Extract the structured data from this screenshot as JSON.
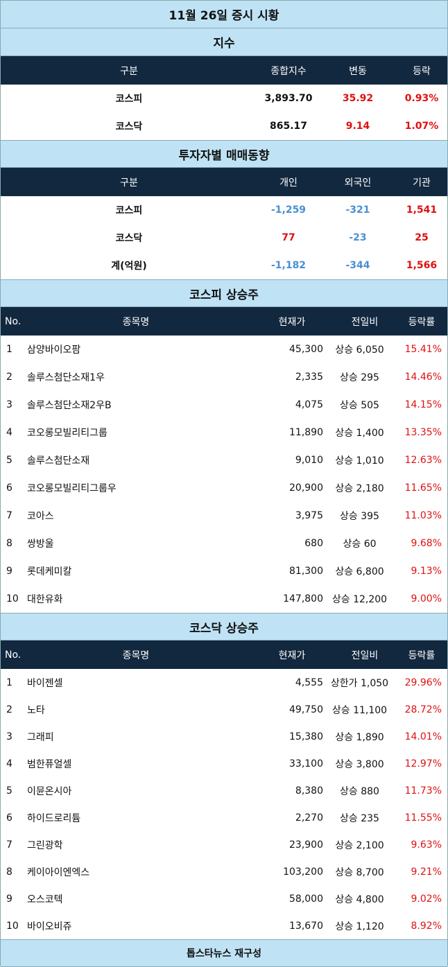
{
  "title": "11월 26일 증시 시황",
  "index_section": {
    "title": "지수",
    "headers": [
      "구분",
      "종합지수",
      "변동",
      "등락"
    ],
    "rows": [
      {
        "name": "코스피",
        "value": "3,893.70",
        "change": "35.92",
        "rate": "0.93%"
      },
      {
        "name": "코스닥",
        "value": "865.17",
        "change": "9.14",
        "rate": "1.07%"
      }
    ]
  },
  "investor_section": {
    "title": "투자자별 매매동향",
    "headers": [
      "구분",
      "개인",
      "외국인",
      "기관"
    ],
    "rows": [
      {
        "name": "코스피",
        "individual": "-1,259",
        "foreign": "-321",
        "institution": "1,541"
      },
      {
        "name": "코스닥",
        "individual": "77",
        "foreign": "-23",
        "institution": "25"
      },
      {
        "name": "계(억원)",
        "individual": "-1,182",
        "foreign": "-344",
        "institution": "1,566"
      }
    ]
  },
  "kospi_section": {
    "title": "코스피 상승주",
    "headers": [
      "No.",
      "종목명",
      "현재가",
      "전일비",
      "등락률"
    ],
    "rows": [
      {
        "no": "1",
        "name": "삼양바이오팜",
        "price": "45,300",
        "diff": "상승 6,050",
        "rate": "15.41%"
      },
      {
        "no": "2",
        "name": "솔루스첨단소재1우",
        "price": "2,335",
        "diff": "상승 295",
        "rate": "14.46%"
      },
      {
        "no": "3",
        "name": "솔루스첨단소재2우B",
        "price": "4,075",
        "diff": "상승 505",
        "rate": "14.15%"
      },
      {
        "no": "4",
        "name": "코오롱모빌리티그룹",
        "price": "11,890",
        "diff": "상승 1,400",
        "rate": "13.35%"
      },
      {
        "no": "5",
        "name": "솔루스첨단소재",
        "price": "9,010",
        "diff": "상승 1,010",
        "rate": "12.63%"
      },
      {
        "no": "6",
        "name": "코오롱모빌리티그룹우",
        "price": "20,900",
        "diff": "상승 2,180",
        "rate": "11.65%"
      },
      {
        "no": "7",
        "name": "코아스",
        "price": "3,975",
        "diff": "상승 395",
        "rate": "11.03%"
      },
      {
        "no": "8",
        "name": "쌍방울",
        "price": "680",
        "diff": "상승 60",
        "rate": "9.68%"
      },
      {
        "no": "9",
        "name": "롯데케미칼",
        "price": "81,300",
        "diff": "상승 6,800",
        "rate": "9.13%"
      },
      {
        "no": "10",
        "name": "대한유화",
        "price": "147,800",
        "diff": "상승 12,200",
        "rate": "9.00%"
      }
    ]
  },
  "kosdaq_section": {
    "title": "코스닥 상승주",
    "headers": [
      "No.",
      "종목명",
      "현재가",
      "전일비",
      "등락률"
    ],
    "rows": [
      {
        "no": "1",
        "name": "바이젠셀",
        "price": "4,555",
        "diff": "상한가 1,050",
        "rate": "29.96%"
      },
      {
        "no": "2",
        "name": "노타",
        "price": "49,750",
        "diff": "상승 11,100",
        "rate": "28.72%"
      },
      {
        "no": "3",
        "name": "그래피",
        "price": "15,380",
        "diff": "상승 1,890",
        "rate": "14.01%"
      },
      {
        "no": "4",
        "name": "범한퓨얼셀",
        "price": "33,100",
        "diff": "상승 3,800",
        "rate": "12.97%"
      },
      {
        "no": "5",
        "name": "이뮨온시아",
        "price": "8,380",
        "diff": "상승 880",
        "rate": "11.73%"
      },
      {
        "no": "6",
        "name": "하이드로리튬",
        "price": "2,270",
        "diff": "상승 235",
        "rate": "11.55%"
      },
      {
        "no": "7",
        "name": "그린광학",
        "price": "23,900",
        "diff": "상승 2,100",
        "rate": "9.63%"
      },
      {
        "no": "8",
        "name": "케이아이엔엑스",
        "price": "103,200",
        "diff": "상승 8,700",
        "rate": "9.21%"
      },
      {
        "no": "9",
        "name": "오스코텍",
        "price": "58,000",
        "diff": "상승 4,800",
        "rate": "9.02%"
      },
      {
        "no": "10",
        "name": "바이오비쥬",
        "price": "13,670",
        "diff": "상승 1,120",
        "rate": "8.92%"
      }
    ]
  },
  "footer": "톱스타뉴스 재구성",
  "colors": {
    "header_bg": "#12283f",
    "title_bg": "#bfe3f5",
    "up": "#e01010",
    "down": "#4a8fd0"
  }
}
